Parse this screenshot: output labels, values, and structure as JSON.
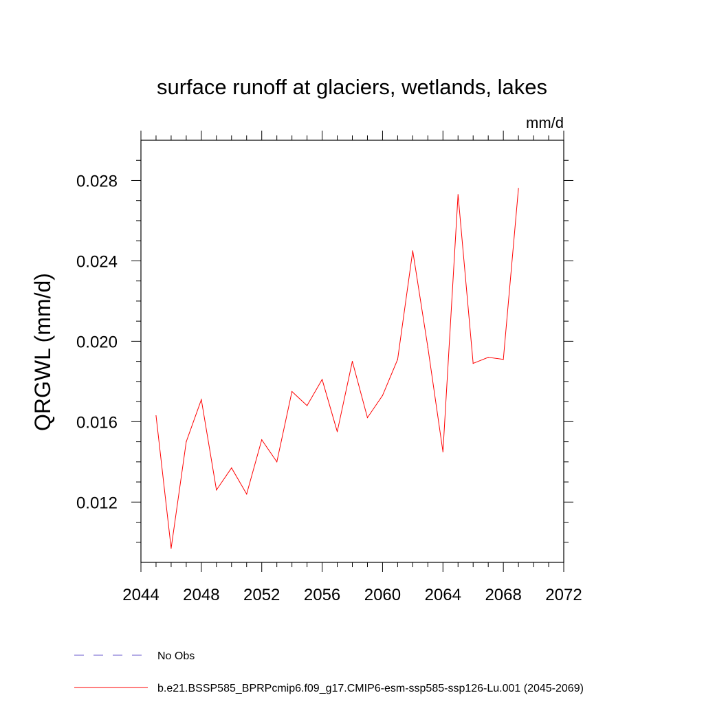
{
  "chart_data": {
    "type": "line",
    "title": "surface runoff at glaciers, wetlands, lakes",
    "units_label": "mm/d",
    "ylabel": "QRGWL  (mm/d)",
    "xlabel": "",
    "xlim": [
      2044,
      2072
    ],
    "ylim": [
      0.009,
      0.03
    ],
    "x_ticks": [
      2044,
      2048,
      2052,
      2056,
      2060,
      2064,
      2068,
      2072
    ],
    "x_tick_labels": [
      "2044",
      "2048",
      "2052",
      "2056",
      "2060",
      "2064",
      "2068",
      "2072"
    ],
    "y_ticks": [
      0.012,
      0.016,
      0.02,
      0.024,
      0.028
    ],
    "y_tick_labels": [
      "0.012",
      "0.016",
      "0.020",
      "0.024",
      "0.028"
    ],
    "grid": false,
    "legend_position": "bottom-left, below plot",
    "series": [
      {
        "name": "b.e21.BSSP585_BPRPcmip6.f09_g17.CMIP6-esm-ssp585-ssp126-Lu.001 (2045-2069)",
        "color": "#ff0000",
        "style": "solid",
        "x": [
          2045,
          2046,
          2047,
          2048,
          2049,
          2050,
          2051,
          2052,
          2053,
          2054,
          2055,
          2056,
          2057,
          2058,
          2059,
          2060,
          2061,
          2062,
          2063,
          2064,
          2065,
          2066,
          2067,
          2068,
          2069
        ],
        "values": [
          0.0163,
          0.0097,
          0.015,
          0.0171,
          0.0126,
          0.0137,
          0.0124,
          0.0151,
          0.014,
          0.0175,
          0.0168,
          0.0181,
          0.0155,
          0.019,
          0.0162,
          0.0173,
          0.0191,
          0.0245,
          0.0197,
          0.0145,
          0.0273,
          0.0189,
          0.0192,
          0.0191,
          0.0276
        ]
      }
    ],
    "legend": [
      {
        "label": "No Obs",
        "color": "#6a5acd",
        "style": "dashed"
      },
      {
        "label": "b.e21.BSSP585_BPRPcmip6.f09_g17.CMIP6-esm-ssp585-ssp126-Lu.001 (2045-2069)",
        "color": "#ff0000",
        "style": "solid"
      }
    ]
  }
}
